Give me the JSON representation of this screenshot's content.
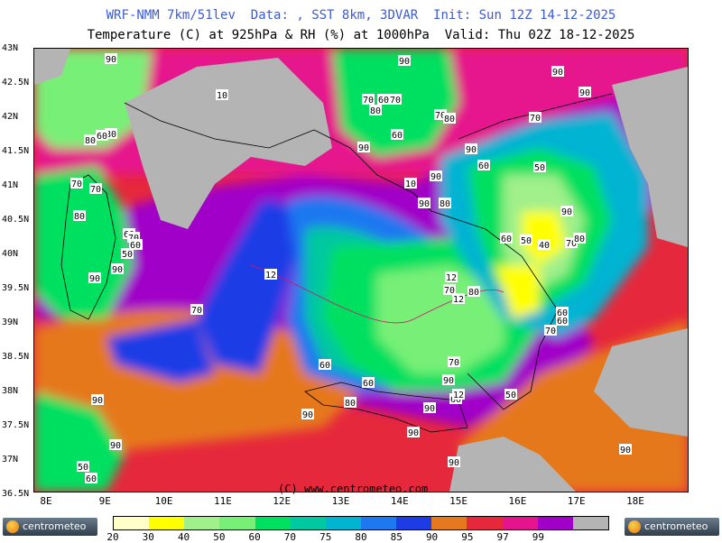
{
  "header": {
    "line1": "WRF-NMM 7km/51lev  Data: , SST 8km, 3DVAR  Init: Sun 12Z 14-12-2025",
    "line2": "Temperature (C) at 925hPa & RH (%) at 1000hPa  Valid: Thu 02Z 18-12-2025"
  },
  "lat_labels": [
    "43N",
    "42.5N",
    "42N",
    "41.5N",
    "41N",
    "40.5N",
    "40N",
    "39.5N",
    "39N",
    "38.5N",
    "38N",
    "37.5N",
    "37N",
    "36.5N"
  ],
  "lon_labels": [
    "8E",
    "9E",
    "10E",
    "11E",
    "12E",
    "13E",
    "14E",
    "15E",
    "16E",
    "17E",
    "18E"
  ],
  "legend": {
    "ticks": [
      "20",
      "30",
      "40",
      "50",
      "60",
      "70",
      "75",
      "80",
      "85",
      "90",
      "95",
      "97",
      "99"
    ],
    "colors": [
      "#ffffc8",
      "#ffff00",
      "#a0f08c",
      "#78f078",
      "#00e060",
      "#00c8a0",
      "#00b4d2",
      "#1e78f0",
      "#1e3ce6",
      "#e6781e",
      "#e6283c",
      "#e6148c",
      "#a000c8",
      "#b4b4b4"
    ]
  },
  "map_labels": {
    "rh": [
      "90",
      "90",
      "90",
      "80",
      "70",
      "60",
      "70",
      "70",
      "80",
      "90",
      "80",
      "60",
      "80",
      "60",
      "90",
      "70",
      "90",
      "60",
      "50",
      "90",
      "70",
      "70",
      "80",
      "60",
      "90",
      "90",
      "70",
      "80",
      "90",
      "80",
      "70",
      "60",
      "50",
      "60",
      "40",
      "70",
      "80",
      "80",
      "60",
      "90",
      "70",
      "90",
      "60",
      "50",
      "60",
      "70",
      "60",
      "80",
      "90",
      "90",
      "70",
      "50",
      "60",
      "90",
      "90",
      "90",
      "70",
      "50",
      "60",
      "90",
      "90"
    ],
    "temp": [
      "10",
      "12",
      "12",
      "12",
      "10",
      "12"
    ]
  },
  "copyright": "(C) www.centrometeo.com",
  "logo_text": "centrometeo"
}
